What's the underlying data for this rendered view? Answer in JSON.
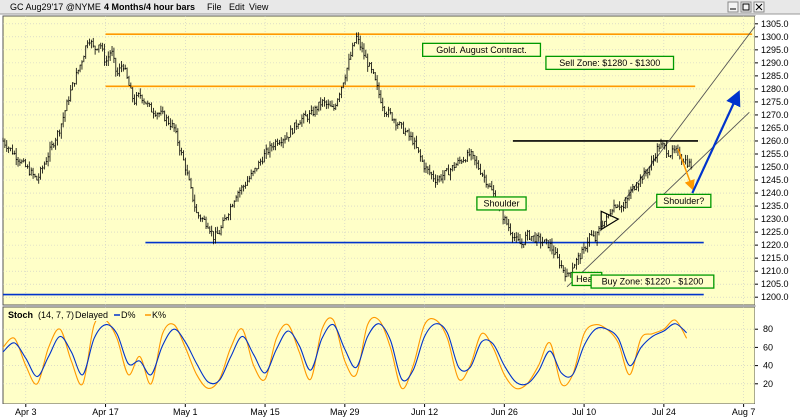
{
  "window": {
    "title": "GC Aug29'17 @NYME",
    "interval": "4 Months/4 hour bars",
    "menu": [
      "File",
      "Edit",
      "View"
    ]
  },
  "colors": {
    "panel_bg": "#ffffc8",
    "orange": "#ff9900",
    "blue": "#0033cc",
    "green_box": "#009900",
    "arrow_blue": "#0033cc",
    "stoch_d": "#0033cc",
    "stoch_k": "#ff9900"
  },
  "chart_data": {
    "type": "line",
    "title": "",
    "ylim": [
      1197,
      1308
    ],
    "y_ticks": [
      1200,
      1205,
      1210,
      1215,
      1220,
      1225,
      1230,
      1235,
      1240,
      1245,
      1250,
      1255,
      1260,
      1265,
      1270,
      1275,
      1280,
      1285,
      1290,
      1295,
      1300,
      1305
    ],
    "x_ticks": [
      "Apr 3",
      "Apr 17",
      "May 1",
      "May 15",
      "May 29",
      "Jun 12",
      "Jun 26",
      "Jul 10",
      "Jul 24",
      "Aug 7"
    ],
    "x_ticks_index": [
      0,
      14,
      28,
      42,
      56,
      70,
      84,
      98,
      112,
      126
    ],
    "x_range": [
      -4,
      128
    ],
    "price": {
      "x": [
        -4,
        -2,
        0,
        2,
        4,
        6,
        8,
        10,
        11,
        12,
        13,
        14,
        15,
        16,
        17,
        18,
        19,
        20,
        22,
        24,
        26,
        28,
        30,
        32,
        33,
        34,
        35,
        36,
        37,
        38,
        40,
        42,
        44,
        46,
        48,
        50,
        52,
        54,
        56,
        58,
        59,
        60,
        61,
        62,
        63,
        64,
        66,
        68,
        70,
        72,
        74,
        76,
        78,
        80,
        82,
        84,
        86,
        87,
        88,
        90,
        92,
        94,
        95,
        96,
        97,
        98,
        99,
        100,
        101,
        102,
        103,
        104,
        105,
        106,
        107,
        108,
        109,
        110,
        111,
        112,
        113,
        114,
        115,
        116,
        117
      ],
      "values": [
        1260,
        1255,
        1250,
        1245,
        1255,
        1265,
        1280,
        1292,
        1300,
        1295,
        1298,
        1290,
        1295,
        1285,
        1290,
        1282,
        1275,
        1278,
        1272,
        1270,
        1265,
        1250,
        1232,
        1228,
        1223,
        1225,
        1230,
        1235,
        1240,
        1242,
        1248,
        1255,
        1260,
        1262,
        1268,
        1270,
        1275,
        1272,
        1285,
        1300,
        1295,
        1290,
        1285,
        1278,
        1272,
        1270,
        1265,
        1260,
        1250,
        1245,
        1248,
        1252,
        1255,
        1248,
        1240,
        1230,
        1222,
        1220,
        1224,
        1222,
        1220,
        1212,
        1208,
        1212,
        1215,
        1218,
        1224,
        1222,
        1228,
        1230,
        1235,
        1236,
        1234,
        1240,
        1243,
        1246,
        1248,
        1252,
        1258,
        1258,
        1255,
        1256,
        1254,
        1252,
        1250
      ]
    },
    "levels": [
      {
        "value": 1301,
        "x0": 14,
        "x1": 127.5,
        "color": "orange"
      },
      {
        "value": 1281,
        "x0": 14,
        "x1": 117.5,
        "color": "orange"
      },
      {
        "value": 1260,
        "x0": 85.5,
        "x1": 118,
        "color": "black"
      },
      {
        "value": 1221,
        "x0": 21,
        "x1": 119,
        "color": "blue"
      },
      {
        "value": 1201,
        "x0": -4,
        "x1": 119,
        "color": "blue"
      }
    ],
    "channel": [
      {
        "x0": 95,
        "y0": 1204,
        "x1": 127,
        "y1": 1271
      },
      {
        "x0": 105,
        "y0": 1237,
        "x1": 128,
        "y1": 1304
      }
    ],
    "triangle": [
      [
        101,
        1226
      ],
      [
        104,
        1230
      ],
      [
        101,
        1233
      ]
    ],
    "arrows": [
      {
        "x0": 114.5,
        "y0": 1257,
        "x1": 117,
        "y1": 1242,
        "color": "orange"
      },
      {
        "x0": 117,
        "y0": 1240,
        "x1": 125,
        "y1": 1278,
        "color": "blue"
      }
    ],
    "annotations": [
      {
        "id": "contract",
        "text": "Gold. August Contract.",
        "x": 80,
        "y": 1295
      },
      {
        "id": "sell",
        "text": "Sell Zone: $1280 - $1300",
        "x": 102.5,
        "y": 1290
      },
      {
        "id": "shoulder-left",
        "text": "Shoulder",
        "x": 83.5,
        "y": 1236
      },
      {
        "id": "shoulder-right",
        "text": "Shoulder?",
        "x": 115.5,
        "y": 1237
      },
      {
        "id": "head",
        "text": "Head",
        "x": 98.5,
        "y": 1207
      },
      {
        "id": "buy",
        "text": "Buy Zone: $1220 - $1200",
        "x": 110,
        "y": 1206
      }
    ]
  },
  "stoch": {
    "label": "Stoch",
    "params": "(14, 7, 7)",
    "delayed": "Delayed",
    "d_label": "D%",
    "k_label": "K%",
    "ylim": [
      0,
      100
    ],
    "y_ticks": [
      20,
      40,
      60,
      80
    ],
    "k": {
      "x": [
        -4,
        -2,
        0,
        2,
        4,
        6,
        8,
        10,
        12,
        14,
        16,
        18,
        20,
        22,
        24,
        26,
        28,
        30,
        32,
        34,
        36,
        38,
        40,
        42,
        44,
        46,
        48,
        50,
        52,
        54,
        56,
        58,
        60,
        62,
        64,
        66,
        68,
        70,
        72,
        74,
        76,
        78,
        80,
        82,
        84,
        86,
        88,
        90,
        92,
        94,
        96,
        98,
        100,
        102,
        104,
        106,
        108,
        110,
        112,
        114,
        116
      ],
      "values": [
        60,
        70,
        40,
        20,
        60,
        80,
        45,
        20,
        85,
        90,
        70,
        30,
        50,
        20,
        75,
        85,
        60,
        30,
        15,
        25,
        60,
        80,
        40,
        25,
        70,
        85,
        55,
        25,
        80,
        90,
        45,
        30,
        85,
        90,
        60,
        15,
        40,
        85,
        90,
        70,
        25,
        40,
        75,
        60,
        30,
        15,
        20,
        40,
        65,
        20,
        30,
        75,
        85,
        80,
        65,
        30,
        70,
        75,
        80,
        90,
        70
      ]
    },
    "d": {
      "x": [
        -4,
        -2,
        0,
        2,
        4,
        6,
        8,
        10,
        12,
        14,
        16,
        18,
        20,
        22,
        24,
        26,
        28,
        30,
        32,
        34,
        36,
        38,
        40,
        42,
        44,
        46,
        48,
        50,
        52,
        54,
        56,
        58,
        60,
        62,
        64,
        66,
        68,
        70,
        72,
        74,
        76,
        78,
        80,
        82,
        84,
        86,
        88,
        90,
        92,
        94,
        96,
        98,
        100,
        102,
        104,
        106,
        108,
        110,
        112,
        114,
        116
      ],
      "values": [
        55,
        65,
        48,
        28,
        50,
        72,
        55,
        30,
        70,
        85,
        75,
        42,
        45,
        30,
        62,
        80,
        66,
        42,
        22,
        24,
        50,
        72,
        52,
        32,
        58,
        78,
        62,
        35,
        70,
        85,
        58,
        38,
        72,
        86,
        68,
        25,
        35,
        72,
        86,
        76,
        38,
        38,
        66,
        64,
        40,
        22,
        20,
        34,
        56,
        32,
        30,
        62,
        80,
        80,
        70,
        40,
        60,
        72,
        78,
        86,
        76
      ]
    }
  }
}
